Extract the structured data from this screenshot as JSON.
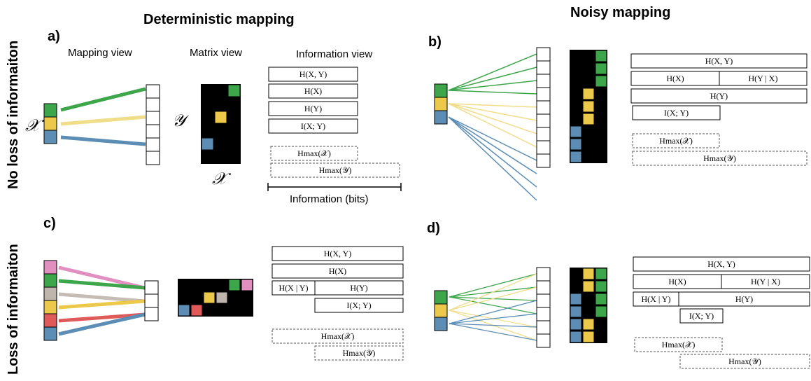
{
  "titles": {
    "deterministic": "Deterministic mapping",
    "noisy": "Noisy mapping"
  },
  "row_labels": {
    "top": "No loss of informaiton",
    "bottom": "Loss of informaiton"
  },
  "panel_labels": {
    "a": "a)",
    "b": "b)",
    "c": "c)",
    "d": "d)"
  },
  "view_labels": {
    "mapping": "Mapping view",
    "matrix": "Matrix view",
    "information": "Information view"
  },
  "math_labels": {
    "X": "𝒳",
    "Y": "𝒴"
  },
  "info_axis": {
    "label": "Information (bits)"
  },
  "colors": {
    "green": "#3da64a",
    "yellow": "#ecc94b",
    "blue": "#5b8db5",
    "pink": "#e08fc0",
    "gray": "#c0b5ad",
    "red": "#e05a5a",
    "matrix_bg": "#000000",
    "line_yellow": "#f0dd8a",
    "line_gray": "#c4bcb5"
  },
  "panels": {
    "a": {
      "info_boxes": [
        {
          "label": "H(X, Y)",
          "style": "solid"
        },
        {
          "label": "H(X)",
          "style": "solid"
        },
        {
          "label": "H(Y)",
          "style": "solid"
        },
        {
          "label": "I(X; Y)",
          "style": "solid"
        },
        {
          "label": "Hmax(𝒳)",
          "style": "dashed"
        },
        {
          "label": "Hmax(𝒴)",
          "style": "dashed"
        }
      ]
    },
    "b": {
      "info_boxes": [
        {
          "label": "H(X, Y)",
          "style": "solid"
        },
        {
          "label": "H(X)",
          "style": "solid"
        },
        {
          "label": "H(Y | X)",
          "style": "solid"
        },
        {
          "label": "H(Y)",
          "style": "solid"
        },
        {
          "label": "I(X; Y)",
          "style": "solid"
        },
        {
          "label": "Hmax(𝒳)",
          "style": "dashed"
        },
        {
          "label": "Hmax(𝒴)",
          "style": "dashed"
        }
      ]
    },
    "c": {
      "info_boxes": [
        {
          "label": "H(X, Y)",
          "style": "solid"
        },
        {
          "label": "H(X)",
          "style": "solid"
        },
        {
          "label": "H(X | Y)",
          "style": "solid"
        },
        {
          "label": "H(Y)",
          "style": "solid"
        },
        {
          "label": "I(X; Y)",
          "style": "solid"
        },
        {
          "label": "Hmax(𝒳)",
          "style": "dashed"
        },
        {
          "label": "Hmax(𝒴)",
          "style": "dashed"
        }
      ]
    },
    "d": {
      "info_boxes": [
        {
          "label": "H(X, Y)",
          "style": "solid"
        },
        {
          "label": "H(X)",
          "style": "solid"
        },
        {
          "label": "H(Y | X)",
          "style": "solid"
        },
        {
          "label": "H(X | Y)",
          "style": "solid"
        },
        {
          "label": "H(Y)",
          "style": "solid"
        },
        {
          "label": "I(X; Y)",
          "style": "solid"
        },
        {
          "label": "Hmax(𝒳)",
          "style": "dashed"
        },
        {
          "label": "Hmax(𝒴)",
          "style": "dashed"
        }
      ]
    }
  }
}
